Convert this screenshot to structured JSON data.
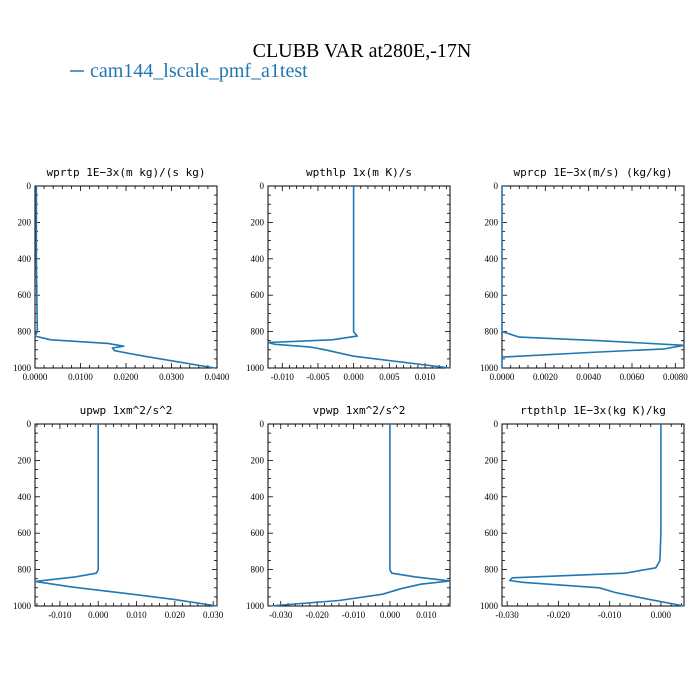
{
  "figure": {
    "title": "CLUBB VAR at280E,-17N",
    "legend_label": "cam144_lscale_pmf_a1test",
    "line_color": "#1f77b4"
  },
  "chart_data": [
    {
      "type": "line",
      "title": "wprtp  1E−3x(m kg)/(s kg)",
      "xlim": [
        0.0,
        0.04
      ],
      "ylim": [
        1000,
        0
      ],
      "xticks": [
        0.0,
        0.01,
        0.02,
        0.03,
        0.04
      ],
      "xtick_labels": [
        "0.0000",
        "0.0100",
        "0.0200",
        "0.0300",
        "0.0400"
      ],
      "yticks": [
        0,
        200,
        400,
        600,
        800,
        1000
      ],
      "ytick_labels": [
        "0",
        "200",
        "400",
        "600",
        "800",
        "1000"
      ],
      "series": [
        {
          "x": [
            0.0003,
            0.0003,
            0.0003,
            0.0004,
            0.0005,
            0.0,
            0.0035,
            0.016,
            0.0195,
            0.017,
            0.0175,
            0.024,
            0.0395
          ],
          "y": [
            0,
            200,
            400,
            600,
            800,
            825,
            845,
            865,
            880,
            890,
            905,
            935,
            1000
          ]
        }
      ]
    },
    {
      "type": "line",
      "title": "wpthlp  1x(m K)/s",
      "xlim": [
        -0.012,
        0.0135
      ],
      "ylim": [
        1000,
        0
      ],
      "xticks": [
        -0.01,
        -0.005,
        0.0,
        0.005,
        0.01
      ],
      "xtick_labels": [
        "-0.010",
        "-0.005",
        "0.000",
        "0.005",
        "0.010"
      ],
      "yticks": [
        0,
        200,
        400,
        600,
        800,
        1000
      ],
      "ytick_labels": [
        "0",
        "200",
        "400",
        "600",
        "800",
        "1000"
      ],
      "series": [
        {
          "x": [
            0.0,
            0.0,
            0.0,
            0.0,
            0.0,
            0.0005,
            -0.003,
            -0.012,
            -0.011,
            -0.006,
            -0.004,
            0.0,
            0.0135
          ],
          "y": [
            0,
            200,
            400,
            600,
            800,
            825,
            845,
            860,
            870,
            885,
            900,
            935,
            1000
          ]
        }
      ]
    },
    {
      "type": "line",
      "title": "wprcp  1E−3x(m/s) (kg/kg)",
      "xlim": [
        0.0,
        0.0084
      ],
      "ylim": [
        1000,
        0
      ],
      "xticks": [
        0.0,
        0.002,
        0.004,
        0.006,
        0.008
      ],
      "xtick_labels": [
        "0.0000",
        "0.0020",
        "0.0040",
        "0.0060",
        "0.0080"
      ],
      "yticks": [
        0,
        200,
        400,
        600,
        800,
        1000
      ],
      "ytick_labels": [
        "0",
        "200",
        "400",
        "600",
        "800",
        "1000"
      ],
      "series": [
        {
          "x": [
            0.0,
            0.0,
            0.0,
            0.0,
            0.0,
            0.0008,
            0.0045,
            0.0084,
            0.0075,
            0.004,
            0.0,
            0.0
          ],
          "y": [
            0,
            200,
            400,
            600,
            800,
            830,
            850,
            875,
            895,
            915,
            940,
            1000
          ]
        }
      ]
    },
    {
      "type": "line",
      "title": "upwp  1xm^2/s^2",
      "xlim": [
        -0.0165,
        0.031
      ],
      "ylim": [
        1000,
        0
      ],
      "xticks": [
        -0.01,
        0.0,
        0.01,
        0.02,
        0.03
      ],
      "xtick_labels": [
        "-0.010",
        "0.000",
        "0.010",
        "0.020",
        "0.030"
      ],
      "yticks": [
        0,
        200,
        400,
        600,
        800,
        1000
      ],
      "ytick_labels": [
        "0",
        "200",
        "400",
        "600",
        "800",
        "1000"
      ],
      "series": [
        {
          "x": [
            0.0,
            0.0,
            0.0,
            0.0,
            0.0,
            -0.0005,
            -0.006,
            -0.0165,
            -0.007,
            0.005,
            0.02,
            0.031
          ],
          "y": [
            0,
            200,
            400,
            600,
            800,
            820,
            840,
            865,
            895,
            925,
            965,
            1000
          ]
        }
      ]
    },
    {
      "type": "line",
      "title": "vpwp  1xm^2/s^2",
      "xlim": [
        -0.0335,
        0.0165
      ],
      "ylim": [
        1000,
        0
      ],
      "xticks": [
        -0.03,
        -0.02,
        -0.01,
        0.0,
        0.01
      ],
      "xtick_labels": [
        "-0.030",
        "-0.020",
        "-0.010",
        "0.000",
        "0.010"
      ],
      "yticks": [
        0,
        200,
        400,
        600,
        800,
        1000
      ],
      "ytick_labels": [
        "0",
        "200",
        "400",
        "600",
        "800",
        "1000"
      ],
      "series": [
        {
          "x": [
            0.0,
            0.0,
            0.0,
            0.0,
            0.0,
            0.0005,
            0.007,
            0.0165,
            0.0085,
            0.003,
            -0.002,
            -0.014,
            -0.033
          ],
          "y": [
            0,
            200,
            400,
            600,
            800,
            820,
            840,
            862,
            880,
            905,
            935,
            970,
            1000
          ]
        }
      ]
    },
    {
      "type": "line",
      "title": "rtpthlp  1E−3x(kg K)/kg",
      "xlim": [
        -0.031,
        0.0045
      ],
      "ylim": [
        1000,
        0
      ],
      "xticks": [
        -0.03,
        -0.02,
        -0.01,
        0.0
      ],
      "xtick_labels": [
        "-0.030",
        "-0.020",
        "-0.010",
        "0.000"
      ],
      "yticks": [
        0,
        200,
        400,
        600,
        800,
        1000
      ],
      "ytick_labels": [
        "0",
        "200",
        "400",
        "600",
        "800",
        "1000"
      ],
      "series": [
        {
          "x": [
            0.0,
            0.0,
            0.0,
            0.0,
            -0.0002,
            -0.001,
            -0.007,
            -0.029,
            -0.0295,
            -0.027,
            -0.012,
            -0.009,
            -0.003,
            0.0045
          ],
          "y": [
            0,
            200,
            400,
            600,
            750,
            790,
            820,
            845,
            860,
            870,
            900,
            925,
            960,
            1000
          ]
        }
      ]
    }
  ]
}
